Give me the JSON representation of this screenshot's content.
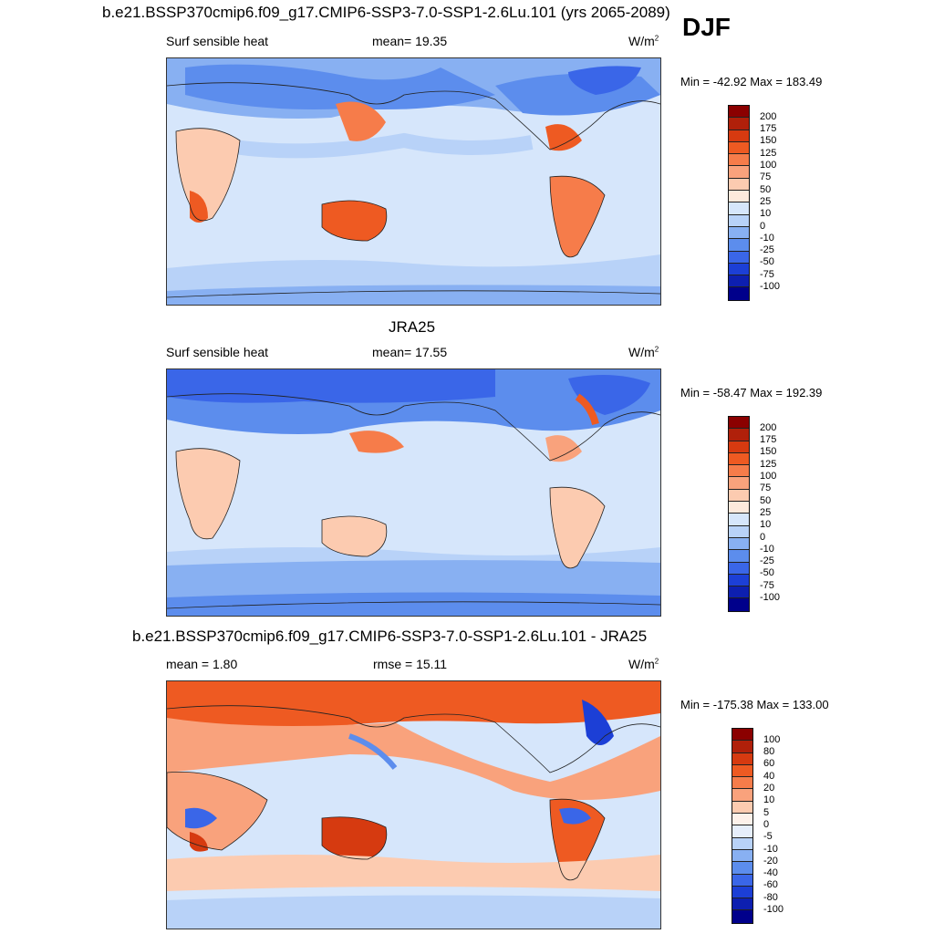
{
  "season": "DJF",
  "panels": [
    {
      "title": "b.e21.BSSP370cmip6.f09_g17.CMIP6-SSP3-7.0-SSP1-2.6Lu.101 (yrs 2065-2089)",
      "left_label": "Surf sensible heat",
      "center_label": "mean=  19.35",
      "units": "W/m",
      "units_exp": "2",
      "minmax": "Min = -42.92 Max = 183.49",
      "levels": [
        "200",
        "175",
        "150",
        "125",
        "100",
        "75",
        "50",
        "25",
        "10",
        "0",
        "-10",
        "-25",
        "-50",
        "-75",
        "-100"
      ],
      "colors": [
        "#8b0000",
        "#b0200a",
        "#d63a10",
        "#ee5a22",
        "#f67c4a",
        "#f9a27c",
        "#fccbb0",
        "#fde9dc",
        "#d6e6fb",
        "#b8d2f8",
        "#88b0f2",
        "#5c8ded",
        "#3a66e8",
        "#1c3fd6",
        "#0d1fb0",
        "#00008b"
      ]
    },
    {
      "title": "JRA25",
      "left_label": "Surf sensible heat",
      "center_label": "mean=  17.55",
      "units": "W/m",
      "units_exp": "2",
      "minmax": "Min = -58.47 Max = 192.39",
      "levels": [
        "200",
        "175",
        "150",
        "125",
        "100",
        "75",
        "50",
        "25",
        "10",
        "0",
        "-10",
        "-25",
        "-50",
        "-75",
        "-100"
      ],
      "colors": [
        "#8b0000",
        "#b0200a",
        "#d63a10",
        "#ee5a22",
        "#f67c4a",
        "#f9a27c",
        "#fccbb0",
        "#fde9dc",
        "#d6e6fb",
        "#b8d2f8",
        "#88b0f2",
        "#5c8ded",
        "#3a66e8",
        "#1c3fd6",
        "#0d1fb0",
        "#00008b"
      ]
    },
    {
      "title": "b.e21.BSSP370cmip6.f09_g17.CMIP6-SSP3-7.0-SSP1-2.6Lu.101 - JRA25",
      "left_label": "mean =   1.80",
      "center_label": "rmse =  15.11",
      "units": "W/m",
      "units_exp": "2",
      "minmax": "Min = -175.38 Max = 133.00",
      "levels": [
        "100",
        "80",
        "60",
        "40",
        "20",
        "10",
        "5",
        "0",
        "-5",
        "-10",
        "-20",
        "-40",
        "-60",
        "-80",
        "-100"
      ],
      "colors": [
        "#8b0000",
        "#b0200a",
        "#d63a10",
        "#ee5a22",
        "#f67c4a",
        "#f9a27c",
        "#fccbb0",
        "#fdf1ea",
        "#e6eefb",
        "#b8d2f8",
        "#88b0f2",
        "#5c8ded",
        "#3a66e8",
        "#1c3fd6",
        "#0d1fb0",
        "#00008b"
      ]
    }
  ]
}
